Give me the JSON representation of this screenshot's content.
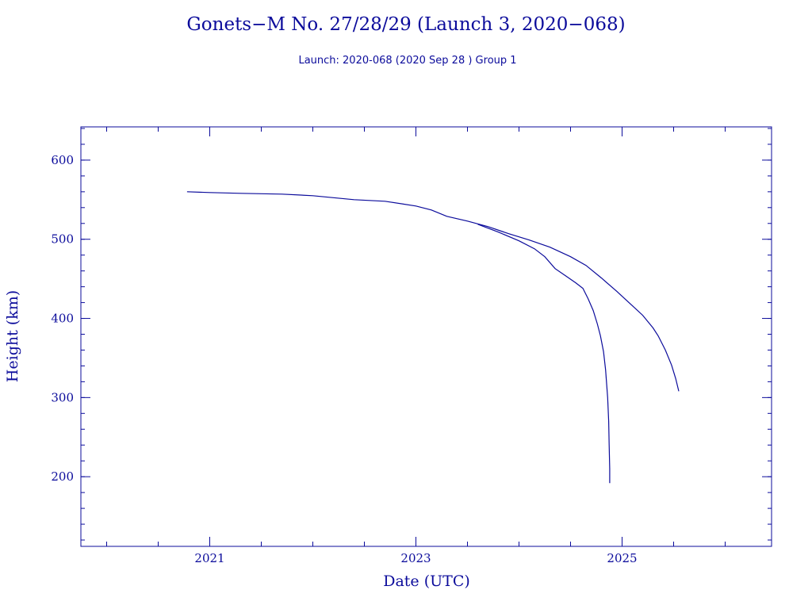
{
  "colors": {
    "ink": "#0b0b9b",
    "background": "#ffffff"
  },
  "chart_data": {
    "type": "line",
    "title": "Gonets−M No. 27/28/29 (Launch 3, 2020−068)",
    "subtitle": "Launch: 2020-068  (2020 Sep 28 )  Group 1",
    "xlabel": "Date (UTC)",
    "ylabel": "Height (km)",
    "xlim": [
      2019.75,
      2026.45
    ],
    "ylim": [
      112,
      642
    ],
    "x_ticks": [
      2021,
      2023,
      2025
    ],
    "x_tick_labels": [
      "2021",
      "2023",
      "2025"
    ],
    "x_minor_step": 0.5,
    "y_ticks": [
      200,
      300,
      400,
      500,
      600
    ],
    "y_tick_labels": [
      "200",
      "300",
      "400",
      "500",
      "600"
    ],
    "y_minor_step": 20,
    "grid": false,
    "series": [
      {
        "values": [
          [
            2020.78,
            560
          ],
          [
            2021.0,
            559
          ],
          [
            2021.3,
            558
          ],
          [
            2021.7,
            557
          ],
          [
            2022.0,
            555
          ],
          [
            2022.4,
            550
          ],
          [
            2022.7,
            548
          ],
          [
            2023.0,
            542
          ],
          [
            2023.15,
            537
          ],
          [
            2023.3,
            529
          ],
          [
            2023.5,
            523
          ],
          [
            2023.7,
            516
          ],
          [
            2023.9,
            507
          ],
          [
            2024.1,
            499
          ],
          [
            2024.3,
            490
          ],
          [
            2024.5,
            478
          ],
          [
            2024.65,
            467
          ],
          [
            2024.8,
            451
          ],
          [
            2024.95,
            434
          ],
          [
            2025.1,
            416
          ],
          [
            2025.2,
            404
          ],
          [
            2025.3,
            388
          ],
          [
            2025.35,
            378
          ],
          [
            2025.42,
            360
          ],
          [
            2025.48,
            341
          ],
          [
            2025.52,
            324
          ],
          [
            2025.55,
            308
          ]
        ]
      },
      {
        "values": [
          [
            2023.6,
            519
          ],
          [
            2023.8,
            509
          ],
          [
            2024.0,
            498
          ],
          [
            2024.15,
            488
          ],
          [
            2024.25,
            478
          ],
          [
            2024.35,
            463
          ],
          [
            2024.45,
            454
          ],
          [
            2024.55,
            445
          ],
          [
            2024.62,
            438
          ],
          [
            2024.67,
            425
          ],
          [
            2024.72,
            410
          ],
          [
            2024.76,
            393
          ],
          [
            2024.79,
            378
          ],
          [
            2024.82,
            358
          ],
          [
            2024.84,
            335
          ],
          [
            2024.86,
            300
          ],
          [
            2024.87,
            270
          ],
          [
            2024.875,
            240
          ],
          [
            2024.88,
            210
          ],
          [
            2024.88,
            192
          ]
        ]
      }
    ]
  }
}
